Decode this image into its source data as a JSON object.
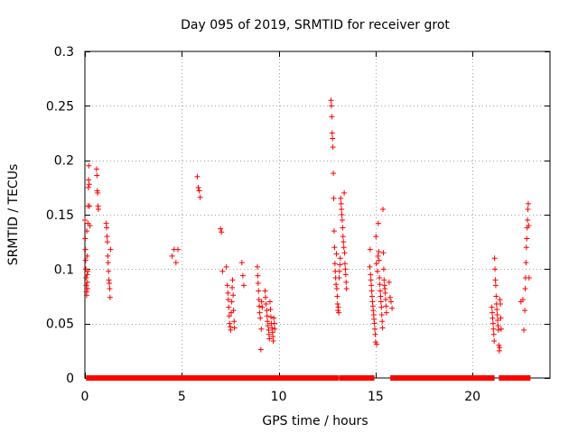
{
  "chart_data": {
    "type": "scatter",
    "title": "Day 095 of 2019, SRMTID for receiver grot",
    "xlabel": "GPS time / hours",
    "ylabel": "SRMTID / TECUs",
    "xlim": [
      0,
      24
    ],
    "ylim": [
      0,
      0.3
    ],
    "x_ticks": [
      0,
      5,
      10,
      15,
      20
    ],
    "y_ticks": [
      0,
      0.05,
      0.1,
      0.15,
      0.2,
      0.25,
      0.3
    ],
    "x_tick_labels": [
      "0",
      "5",
      "10",
      "15",
      "20"
    ],
    "y_tick_labels": [
      "0",
      "0.05",
      "0.1",
      "0.15",
      "0.2",
      "0.25",
      "0.3"
    ],
    "grid": true,
    "marker": "+",
    "series_color": "#ff0000",
    "zero_value_intervals": [
      [
        0.2,
        1.15
      ],
      [
        1.35,
        7.4
      ],
      [
        7.55,
        7.7
      ],
      [
        7.85,
        8.9
      ],
      [
        9.0,
        9.4
      ],
      [
        9.55,
        12.95
      ],
      [
        13.25,
        14.8
      ],
      [
        15.9,
        21.0
      ],
      [
        21.5,
        22.85
      ]
    ],
    "points": [
      [
        0.0,
        0.145
      ],
      [
        0.02,
        0.128
      ],
      [
        0.03,
        0.118
      ],
      [
        0.04,
        0.108
      ],
      [
        0.05,
        0.1
      ],
      [
        0.06,
        0.092
      ],
      [
        0.07,
        0.085
      ],
      [
        0.08,
        0.079
      ],
      [
        0.09,
        0.076
      ],
      [
        0.1,
        0.135
      ],
      [
        0.11,
        0.112
      ],
      [
        0.12,
        0.095
      ],
      [
        0.13,
        0.088
      ],
      [
        0.14,
        0.082
      ],
      [
        0.15,
        0.098
      ],
      [
        0.16,
        0.142
      ],
      [
        0.17,
        0.158
      ],
      [
        0.18,
        0.175
      ],
      [
        0.19,
        0.182
      ],
      [
        0.2,
        0.195
      ],
      [
        0.22,
        0.178
      ],
      [
        0.24,
        0.158
      ],
      [
        0.26,
        0.14
      ],
      [
        0.6,
        0.192
      ],
      [
        0.62,
        0.186
      ],
      [
        0.64,
        0.172
      ],
      [
        0.66,
        0.17
      ],
      [
        0.68,
        0.158
      ],
      [
        0.7,
        0.155
      ],
      [
        1.1,
        0.142
      ],
      [
        1.12,
        0.138
      ],
      [
        1.14,
        0.13
      ],
      [
        1.16,
        0.125
      ],
      [
        1.18,
        0.112
      ],
      [
        1.2,
        0.106
      ],
      [
        1.22,
        0.098
      ],
      [
        1.24,
        0.09
      ],
      [
        1.26,
        0.087
      ],
      [
        1.28,
        0.082
      ],
      [
        1.3,
        0.074
      ],
      [
        1.32,
        0.118
      ],
      [
        4.5,
        0.112
      ],
      [
        4.6,
        0.118
      ],
      [
        4.7,
        0.106
      ],
      [
        4.8,
        0.118
      ],
      [
        5.8,
        0.185
      ],
      [
        5.85,
        0.175
      ],
      [
        5.9,
        0.172
      ],
      [
        5.95,
        0.166
      ],
      [
        7.0,
        0.137
      ],
      [
        7.05,
        0.134
      ],
      [
        7.1,
        0.098
      ],
      [
        7.3,
        0.102
      ],
      [
        7.35,
        0.085
      ],
      [
        7.38,
        0.078
      ],
      [
        7.4,
        0.072
      ],
      [
        7.42,
        0.065
      ],
      [
        7.45,
        0.057
      ],
      [
        7.47,
        0.05
      ],
      [
        7.5,
        0.047
      ],
      [
        7.52,
        0.044
      ],
      [
        7.55,
        0.06
      ],
      [
        7.58,
        0.07
      ],
      [
        7.6,
        0.083
      ],
      [
        7.62,
        0.09
      ],
      [
        7.65,
        0.076
      ],
      [
        7.67,
        0.062
      ],
      [
        7.7,
        0.052
      ],
      [
        7.72,
        0.046
      ],
      [
        8.1,
        0.106
      ],
      [
        8.15,
        0.094
      ],
      [
        8.2,
        0.085
      ],
      [
        8.9,
        0.102
      ],
      [
        8.92,
        0.094
      ],
      [
        8.94,
        0.087
      ],
      [
        8.96,
        0.08
      ],
      [
        8.98,
        0.072
      ],
      [
        9.0,
        0.066
      ],
      [
        9.02,
        0.06
      ],
      [
        9.05,
        0.055
      ],
      [
        9.08,
        0.026
      ],
      [
        9.1,
        0.045
      ],
      [
        9.12,
        0.07
      ],
      [
        9.15,
        0.065
      ],
      [
        9.3,
        0.08
      ],
      [
        9.32,
        0.074
      ],
      [
        9.35,
        0.068
      ],
      [
        9.38,
        0.062
      ],
      [
        9.4,
        0.057
      ],
      [
        9.42,
        0.052
      ],
      [
        9.45,
        0.048
      ],
      [
        9.48,
        0.044
      ],
      [
        9.5,
        0.04
      ],
      [
        9.52,
        0.036
      ],
      [
        9.55,
        0.07
      ],
      [
        9.58,
        0.063
      ],
      [
        9.6,
        0.056
      ],
      [
        9.62,
        0.05
      ],
      [
        9.65,
        0.046
      ],
      [
        9.68,
        0.042
      ],
      [
        9.7,
        0.038
      ],
      [
        9.72,
        0.034
      ],
      [
        9.75,
        0.055
      ],
      [
        9.78,
        0.05
      ],
      [
        9.8,
        0.045
      ],
      [
        12.7,
        0.255
      ],
      [
        12.72,
        0.25
      ],
      [
        12.74,
        0.24
      ],
      [
        12.76,
        0.225
      ],
      [
        12.78,
        0.22
      ],
      [
        12.8,
        0.212
      ],
      [
        12.82,
        0.188
      ],
      [
        12.84,
        0.165
      ],
      [
        12.86,
        0.135
      ],
      [
        12.88,
        0.12
      ],
      [
        12.9,
        0.105
      ],
      [
        12.92,
        0.098
      ],
      [
        12.94,
        0.092
      ],
      [
        12.96,
        0.086
      ],
      [
        12.98,
        0.114
      ],
      [
        13.0,
        0.082
      ],
      [
        13.02,
        0.075
      ],
      [
        13.04,
        0.068
      ],
      [
        13.06,
        0.062
      ],
      [
        13.08,
        0.065
      ],
      [
        13.1,
        0.06
      ],
      [
        13.12,
        0.092
      ],
      [
        13.14,
        0.098
      ],
      [
        13.16,
        0.104
      ],
      [
        13.18,
        0.11
      ],
      [
        13.2,
        0.165
      ],
      [
        13.22,
        0.16
      ],
      [
        13.24,
        0.155
      ],
      [
        13.26,
        0.15
      ],
      [
        13.28,
        0.145
      ],
      [
        13.3,
        0.138
      ],
      [
        13.32,
        0.13
      ],
      [
        13.34,
        0.125
      ],
      [
        13.36,
        0.12
      ],
      [
        13.38,
        0.17
      ],
      [
        13.4,
        0.115
      ],
      [
        13.42,
        0.105
      ],
      [
        13.44,
        0.1
      ],
      [
        13.46,
        0.095
      ],
      [
        13.48,
        0.088
      ],
      [
        13.5,
        0.082
      ],
      [
        14.7,
        0.102
      ],
      [
        14.72,
        0.118
      ],
      [
        14.74,
        0.095
      ],
      [
        14.76,
        0.09
      ],
      [
        14.78,
        0.085
      ],
      [
        14.8,
        0.08
      ],
      [
        14.82,
        0.075
      ],
      [
        14.84,
        0.07
      ],
      [
        14.86,
        0.066
      ],
      [
        14.88,
        0.062
      ],
      [
        14.9,
        0.058
      ],
      [
        14.92,
        0.054
      ],
      [
        14.94,
        0.05
      ],
      [
        14.96,
        0.045
      ],
      [
        14.98,
        0.04
      ],
      [
        15.0,
        0.033
      ],
      [
        15.02,
        0.13
      ],
      [
        15.04,
        0.105
      ],
      [
        15.06,
        0.031
      ],
      [
        15.1,
        0.098
      ],
      [
        15.12,
        0.112
      ],
      [
        15.14,
        0.142
      ],
      [
        15.16,
        0.116
      ],
      [
        15.18,
        0.108
      ],
      [
        15.2,
        0.092
      ],
      [
        15.22,
        0.086
      ],
      [
        15.24,
        0.08
      ],
      [
        15.26,
        0.075
      ],
      [
        15.28,
        0.07
      ],
      [
        15.3,
        0.065
      ],
      [
        15.32,
        0.058
      ],
      [
        15.34,
        0.052
      ],
      [
        15.36,
        0.046
      ],
      [
        15.38,
        0.155
      ],
      [
        15.4,
        0.115
      ],
      [
        15.42,
        0.1
      ],
      [
        15.44,
        0.09
      ],
      [
        15.46,
        0.085
      ],
      [
        15.48,
        0.082
      ],
      [
        15.5,
        0.078
      ],
      [
        15.52,
        0.072
      ],
      [
        15.54,
        0.066
      ],
      [
        15.56,
        0.06
      ],
      [
        15.7,
        0.088
      ],
      [
        15.75,
        0.074
      ],
      [
        15.8,
        0.07
      ],
      [
        15.85,
        0.064
      ],
      [
        21.0,
        0.065
      ],
      [
        21.02,
        0.06
      ],
      [
        21.04,
        0.055
      ],
      [
        21.06,
        0.05
      ],
      [
        21.08,
        0.045
      ],
      [
        21.1,
        0.04
      ],
      [
        21.12,
        0.034
      ],
      [
        21.14,
        0.11
      ],
      [
        21.16,
        0.1
      ],
      [
        21.18,
        0.09
      ],
      [
        21.2,
        0.085
      ],
      [
        21.22,
        0.075
      ],
      [
        21.24,
        0.068
      ],
      [
        21.26,
        0.063
      ],
      [
        21.28,
        0.058
      ],
      [
        21.3,
        0.053
      ],
      [
        21.32,
        0.048
      ],
      [
        21.34,
        0.044
      ],
      [
        21.36,
        0.03
      ],
      [
        21.38,
        0.025
      ],
      [
        21.4,
        0.028
      ],
      [
        21.42,
        0.072
      ],
      [
        21.44,
        0.068
      ],
      [
        21.46,
        0.055
      ],
      [
        21.48,
        0.045
      ],
      [
        22.5,
        0.07
      ],
      [
        22.6,
        0.072
      ],
      [
        22.65,
        0.044
      ],
      [
        22.7,
        0.062
      ],
      [
        22.72,
        0.082
      ],
      [
        22.74,
        0.092
      ],
      [
        22.76,
        0.106
      ],
      [
        22.78,
        0.12
      ],
      [
        22.8,
        0.128
      ],
      [
        22.82,
        0.138
      ],
      [
        22.84,
        0.145
      ],
      [
        22.86,
        0.155
      ],
      [
        22.88,
        0.16
      ],
      [
        22.9,
        0.14
      ],
      [
        22.92,
        0.092
      ]
    ]
  }
}
